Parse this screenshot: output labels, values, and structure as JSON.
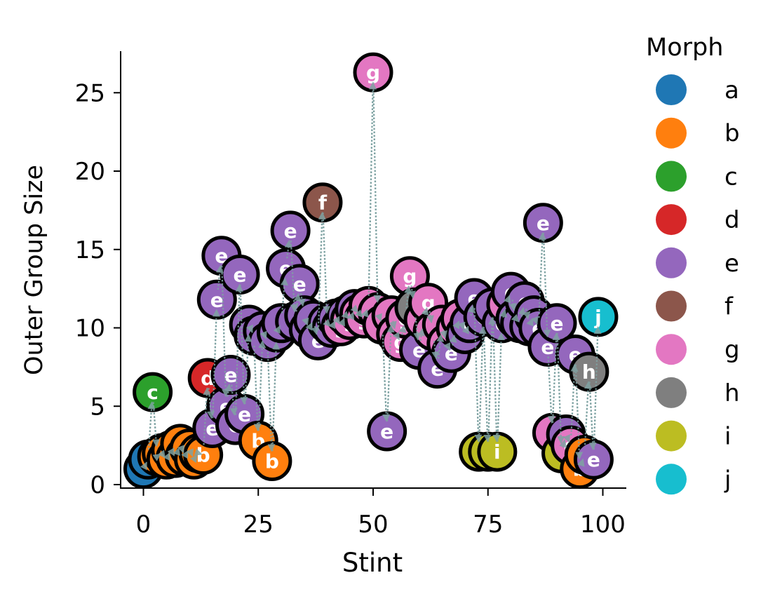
{
  "chart_data": {
    "type": "scatter",
    "title": "",
    "xlabel": "Stint",
    "ylabel": "Outer Group Size",
    "xlim": [
      -5,
      105
    ],
    "ylim": [
      -0.3,
      27.5
    ],
    "xticks": [
      0,
      25,
      50,
      75,
      100
    ],
    "yticks": [
      0,
      5,
      10,
      15,
      20,
      25
    ],
    "grid": false,
    "legend": {
      "title": "Morph",
      "placement": "outside-right",
      "entries": [
        {
          "label": "a",
          "color": "#1f77b4"
        },
        {
          "label": "b",
          "color": "#ff7f0e"
        },
        {
          "label": "c",
          "color": "#2ca02c"
        },
        {
          "label": "d",
          "color": "#d62728"
        },
        {
          "label": "e",
          "color": "#9467bd"
        },
        {
          "label": "f",
          "color": "#8c564b"
        },
        {
          "label": "g",
          "color": "#e377c2"
        },
        {
          "label": "h",
          "color": "#7f7f7f"
        },
        {
          "label": "i",
          "color": "#bcbd22"
        },
        {
          "label": "j",
          "color": "#17becf"
        }
      ]
    },
    "arrow_color": "#7fa3a3",
    "points": [
      {
        "x": 0,
        "y": 1.0,
        "m": "a"
      },
      {
        "x": 1,
        "y": 1.6,
        "m": "a"
      },
      {
        "x": 2,
        "y": 5.9,
        "m": "c"
      },
      {
        "x": 3,
        "y": 1.8,
        "m": "b"
      },
      {
        "x": 4,
        "y": 2.0,
        "m": "b"
      },
      {
        "x": 5,
        "y": 1.6,
        "m": "b"
      },
      {
        "x": 6,
        "y": 2.2,
        "m": "b"
      },
      {
        "x": 7,
        "y": 1.7,
        "m": "b"
      },
      {
        "x": 8,
        "y": 2.6,
        "m": "b"
      },
      {
        "x": 9,
        "y": 1.8,
        "m": "b"
      },
      {
        "x": 10,
        "y": 2.3,
        "m": "b"
      },
      {
        "x": 11,
        "y": 1.6,
        "m": "b"
      },
      {
        "x": 12,
        "y": 2.0,
        "m": "b"
      },
      {
        "x": 13,
        "y": 1.9,
        "m": "b"
      },
      {
        "x": 14,
        "y": 6.8,
        "m": "d"
      },
      {
        "x": 15,
        "y": 3.6,
        "m": "e"
      },
      {
        "x": 16,
        "y": 11.8,
        "m": "e"
      },
      {
        "x": 17,
        "y": 14.6,
        "m": "e"
      },
      {
        "x": 18,
        "y": 5.0,
        "m": "e"
      },
      {
        "x": 19,
        "y": 7.0,
        "m": "e"
      },
      {
        "x": 20,
        "y": 3.8,
        "m": "e"
      },
      {
        "x": 21,
        "y": 13.4,
        "m": "e"
      },
      {
        "x": 22,
        "y": 4.5,
        "m": "e"
      },
      {
        "x": 23,
        "y": 10.2,
        "m": "e"
      },
      {
        "x": 24,
        "y": 9.5,
        "m": "e"
      },
      {
        "x": 25,
        "y": 2.8,
        "m": "b"
      },
      {
        "x": 26,
        "y": 9.8,
        "m": "e"
      },
      {
        "x": 27,
        "y": 9.1,
        "m": "e"
      },
      {
        "x": 28,
        "y": 1.5,
        "m": "b"
      },
      {
        "x": 29,
        "y": 9.7,
        "m": "e"
      },
      {
        "x": 30,
        "y": 10.3,
        "m": "e"
      },
      {
        "x": 31,
        "y": 13.8,
        "m": "e"
      },
      {
        "x": 32,
        "y": 16.2,
        "m": "e"
      },
      {
        "x": 33,
        "y": 10.4,
        "m": "e"
      },
      {
        "x": 34,
        "y": 12.8,
        "m": "e"
      },
      {
        "x": 35,
        "y": 10.8,
        "m": "e"
      },
      {
        "x": 36,
        "y": 9.9,
        "m": "e"
      },
      {
        "x": 37,
        "y": 10.5,
        "m": "e"
      },
      {
        "x": 38,
        "y": 9.2,
        "m": "e"
      },
      {
        "x": 39,
        "y": 18.0,
        "m": "f"
      },
      {
        "x": 40,
        "y": 10.3,
        "m": "e"
      },
      {
        "x": 41,
        "y": 10.0,
        "m": "e"
      },
      {
        "x": 42,
        "y": 10.6,
        "m": "e"
      },
      {
        "x": 43,
        "y": 10.1,
        "m": "g"
      },
      {
        "x": 44,
        "y": 10.8,
        "m": "e"
      },
      {
        "x": 45,
        "y": 10.5,
        "m": "g"
      },
      {
        "x": 46,
        "y": 11.2,
        "m": "e"
      },
      {
        "x": 47,
        "y": 10.9,
        "m": "g"
      },
      {
        "x": 48,
        "y": 10.6,
        "m": "g"
      },
      {
        "x": 49,
        "y": 11.4,
        "m": "g"
      },
      {
        "x": 50,
        "y": 26.3,
        "m": "g"
      },
      {
        "x": 51,
        "y": 11.0,
        "m": "g"
      },
      {
        "x": 52,
        "y": 10.2,
        "m": "g"
      },
      {
        "x": 53,
        "y": 3.4,
        "m": "e"
      },
      {
        "x": 54,
        "y": 10.8,
        "m": "g"
      },
      {
        "x": 55,
        "y": 9.6,
        "m": "g"
      },
      {
        "x": 56,
        "y": 9.1,
        "m": "g"
      },
      {
        "x": 57,
        "y": 10.6,
        "m": "g"
      },
      {
        "x": 58,
        "y": 13.3,
        "m": "g"
      },
      {
        "x": 59,
        "y": 11.3,
        "m": "h"
      },
      {
        "x": 60,
        "y": 8.6,
        "m": "e"
      },
      {
        "x": 61,
        "y": 10.5,
        "m": "g"
      },
      {
        "x": 62,
        "y": 11.6,
        "m": "g"
      },
      {
        "x": 63,
        "y": 9.8,
        "m": "g"
      },
      {
        "x": 64,
        "y": 7.4,
        "m": "e"
      },
      {
        "x": 65,
        "y": 10.2,
        "m": "g"
      },
      {
        "x": 66,
        "y": 9.0,
        "m": "g"
      },
      {
        "x": 67,
        "y": 8.4,
        "m": "e"
      },
      {
        "x": 68,
        "y": 10.0,
        "m": "g"
      },
      {
        "x": 69,
        "y": 10.6,
        "m": "g"
      },
      {
        "x": 70,
        "y": 9.6,
        "m": "e"
      },
      {
        "x": 71,
        "y": 10.3,
        "m": "e"
      },
      {
        "x": 72,
        "y": 11.9,
        "m": "e"
      },
      {
        "x": 73,
        "y": 2.1,
        "m": "i"
      },
      {
        "x": 74,
        "y": 10.7,
        "m": "e"
      },
      {
        "x": 75,
        "y": 2.1,
        "m": "i"
      },
      {
        "x": 76,
        "y": 11.3,
        "m": "e"
      },
      {
        "x": 77,
        "y": 2.1,
        "m": "i"
      },
      {
        "x": 78,
        "y": 10.3,
        "m": "e"
      },
      {
        "x": 79,
        "y": 11.5,
        "m": "g"
      },
      {
        "x": 80,
        "y": 12.3,
        "m": "e"
      },
      {
        "x": 81,
        "y": 10.6,
        "m": "e"
      },
      {
        "x": 82,
        "y": 10.3,
        "m": "e"
      },
      {
        "x": 83,
        "y": 11.7,
        "m": "e"
      },
      {
        "x": 84,
        "y": 10.1,
        "m": "e"
      },
      {
        "x": 85,
        "y": 10.8,
        "m": "e"
      },
      {
        "x": 86,
        "y": 10.0,
        "m": "e"
      },
      {
        "x": 87,
        "y": 16.7,
        "m": "e"
      },
      {
        "x": 88,
        "y": 8.8,
        "m": "e"
      },
      {
        "x": 89,
        "y": 3.3,
        "m": "g"
      },
      {
        "x": 90,
        "y": 10.3,
        "m": "e"
      },
      {
        "x": 91,
        "y": 2.0,
        "m": "i"
      },
      {
        "x": 92,
        "y": 3.2,
        "m": "e"
      },
      {
        "x": 93,
        "y": 2.5,
        "m": "g"
      },
      {
        "x": 94,
        "y": 8.3,
        "m": "e"
      },
      {
        "x": 95,
        "y": 1.0,
        "m": "b"
      },
      {
        "x": 96,
        "y": 1.9,
        "m": "b"
      },
      {
        "x": 97,
        "y": 7.2,
        "m": "h"
      },
      {
        "x": 98,
        "y": 1.6,
        "m": "e"
      },
      {
        "x": 99,
        "y": 10.7,
        "m": "j"
      }
    ]
  }
}
